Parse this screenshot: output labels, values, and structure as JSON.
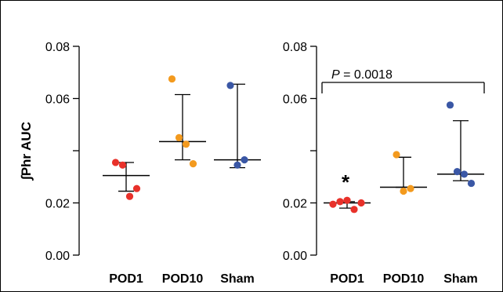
{
  "chart_data": [
    {
      "type": "scatter",
      "ylabel": "∫Phr AUC",
      "ylim": [
        0,
        0.08
      ],
      "yticks": [
        "0.00",
        "0.02",
        "0.04",
        "0.06",
        "0.08"
      ],
      "ytick_labels_shown": [
        "0.00",
        "0.02",
        "0.06",
        "0.08"
      ],
      "categories": [
        "POD1",
        "POD10",
        "Sham"
      ],
      "colors": [
        "#e8312a",
        "#f39a1e",
        "#3a57a5"
      ],
      "series": [
        {
          "category": "POD1",
          "points": [
            0.0355,
            0.0345,
            0.0225,
            0.0255
          ],
          "median": 0.0305,
          "iqr": [
            0.0245,
            0.0355
          ]
        },
        {
          "category": "POD10",
          "points": [
            0.0675,
            0.045,
            0.0425,
            0.035
          ],
          "median": 0.0435,
          "iqr": [
            0.0365,
            0.0615
          ]
        },
        {
          "category": "Sham",
          "points": [
            0.065,
            0.0345,
            0.0365
          ],
          "median": 0.0365,
          "iqr": [
            0.0335,
            0.0655
          ]
        }
      ]
    },
    {
      "type": "scatter",
      "ylabel": "",
      "ylim": [
        0,
        0.08
      ],
      "yticks": [
        "0.00",
        "0.02",
        "0.04",
        "0.06",
        "0.08"
      ],
      "ytick_labels_shown": [
        "0.00",
        "0.02",
        "0.06",
        "0.08"
      ],
      "categories": [
        "POD1",
        "POD10",
        "Sham"
      ],
      "colors": [
        "#e8312a",
        "#f39a1e",
        "#3a57a5"
      ],
      "annotation": {
        "p_symbol": "P",
        "p_text": " = 0.0018",
        "star": "*"
      },
      "series": [
        {
          "category": "POD1",
          "points": [
            0.0195,
            0.0205,
            0.021,
            0.0175,
            0.02
          ],
          "median": 0.02,
          "iqr": [
            0.018,
            0.0205
          ]
        },
        {
          "category": "POD10",
          "points": [
            0.0385,
            0.0245,
            0.0255
          ],
          "median": 0.026,
          "iqr": [
            0.026,
            0.0375
          ]
        },
        {
          "category": "Sham",
          "points": [
            0.0575,
            0.032,
            0.031,
            0.0275
          ],
          "median": 0.031,
          "iqr": [
            0.0285,
            0.0515
          ]
        }
      ]
    }
  ]
}
